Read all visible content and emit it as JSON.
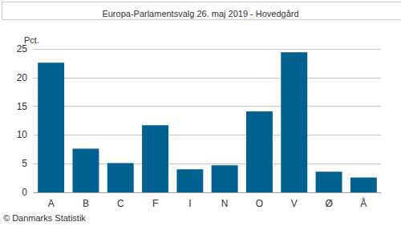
{
  "chart_data": {
    "type": "bar",
    "title": "Europa-Parlamentsvalg 26. maj 2019 - Hovedgård",
    "ylabel": "Pct.",
    "source": "© Danmarks Statistik",
    "categories": [
      "A",
      "B",
      "C",
      "F",
      "I",
      "N",
      "O",
      "V",
      "Ø",
      "Å"
    ],
    "values": [
      22.6,
      7.6,
      5.1,
      11.7,
      4.0,
      4.7,
      14.1,
      24.4,
      3.6,
      2.6
    ],
    "color": "#00608f",
    "ylim": [
      0,
      25
    ],
    "yticks": [
      0,
      5,
      10,
      15,
      20,
      25
    ],
    "grid": true
  }
}
